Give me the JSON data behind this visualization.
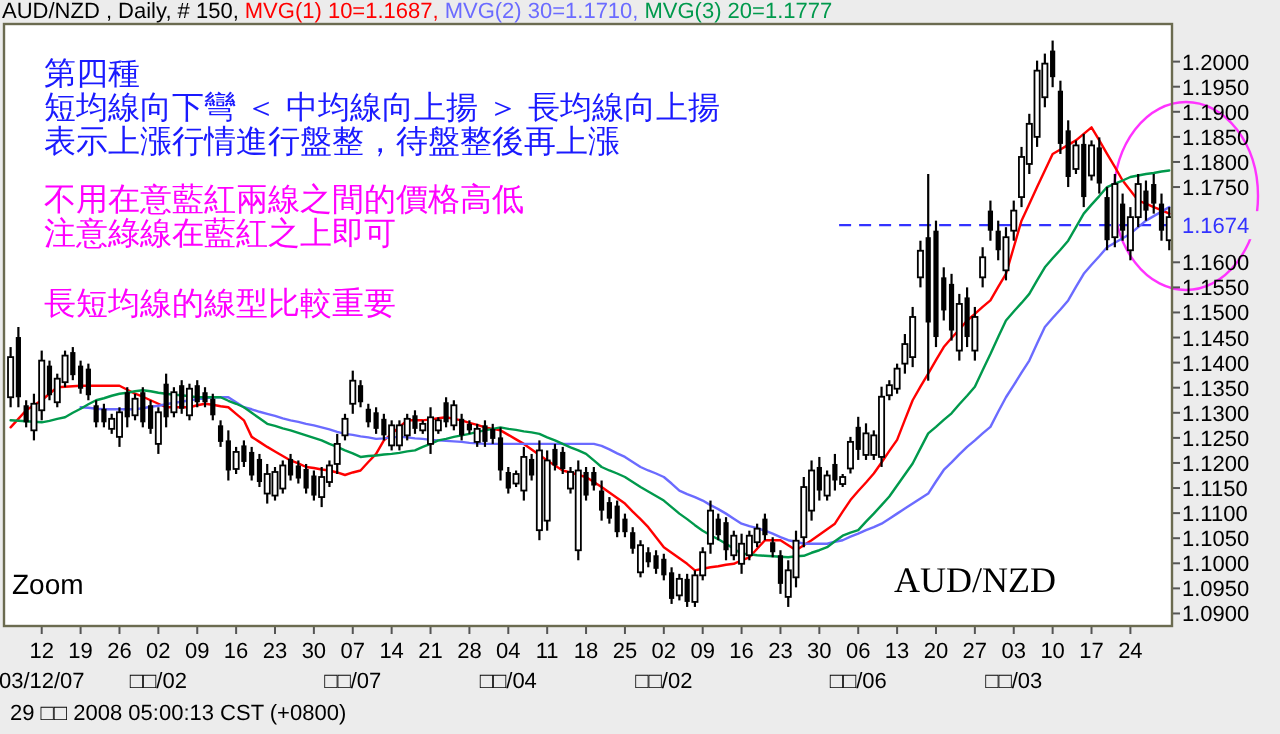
{
  "chart_data": {
    "type": "candlestick",
    "title": "AUD/NZD , Daily, # 150,",
    "categories": [
      null,
      null,
      null,
      null,
      "12\n03/12/07",
      null,
      null,
      null,
      null,
      "19",
      null,
      null,
      null,
      null,
      "26",
      null,
      null,
      null,
      null,
      "02\n□□/02",
      null,
      null,
      null,
      null,
      "09",
      null,
      null,
      null,
      null,
      "16",
      null,
      null,
      null,
      null,
      "23",
      null,
      null,
      null,
      null,
      "30",
      null,
      null,
      null,
      null,
      "07\n□□/07",
      null,
      null,
      null,
      null,
      "14",
      null,
      null,
      null,
      null,
      "21",
      null,
      null,
      null,
      null,
      "28",
      null,
      null,
      null,
      null,
      "04\n□□/04",
      null,
      null,
      null,
      null,
      "11",
      null,
      null,
      null,
      null,
      "18",
      null,
      null,
      null,
      null,
      "25",
      null,
      null,
      null,
      null,
      "02\n□□/02",
      null,
      null,
      null,
      null,
      "09",
      null,
      null,
      null,
      null,
      "16",
      null,
      null,
      null,
      null,
      "23",
      null,
      null,
      null,
      null,
      "30",
      null,
      null,
      null,
      null,
      "06\n□□/06",
      null,
      null,
      null,
      null,
      "13",
      null,
      null,
      null,
      null,
      "20",
      null,
      null,
      null,
      null,
      "27",
      null,
      null,
      null,
      null,
      "03\n□□/03",
      null,
      null,
      null,
      null,
      "10",
      null,
      null,
      null,
      null,
      "17",
      null,
      null,
      null,
      null,
      "24",
      null,
      null,
      null,
      null,
      null
    ],
    "ohlc": [
      [
        1.1331,
        1.1431,
        1.1311,
        1.1411
      ],
      [
        1.1451,
        1.1471,
        1.1311,
        1.1331
      ],
      [
        1.1315,
        1.1325,
        1.1271,
        1.1281
      ],
      [
        1.1265,
        1.1338,
        1.1245,
        1.1318
      ],
      [
        1.1305,
        1.1424,
        1.1285,
        1.1404
      ],
      [
        1.1394,
        1.1404,
        1.1325,
        1.1335
      ],
      [
        1.1321,
        1.1378,
        1.1311,
        1.1368
      ],
      [
        1.1361,
        1.1424,
        1.1351,
        1.1414
      ],
      [
        1.1421,
        1.1431,
        1.1365,
        1.1375
      ],
      [
        1.1394,
        1.1404,
        1.1338,
        1.1348
      ],
      [
        1.1388,
        1.1398,
        1.1325,
        1.1335
      ],
      [
        1.1315,
        1.1325,
        1.1271,
        1.1281
      ],
      [
        1.1308,
        1.1318,
        1.1271,
        1.1281
      ],
      [
        1.1268,
        1.1298,
        1.1258,
        1.1288
      ],
      [
        1.1252,
        1.1311,
        1.1232,
        1.1301
      ],
      [
        1.1341,
        1.1351,
        1.1271,
        1.1291
      ],
      [
        1.1295,
        1.1338,
        1.1285,
        1.1328
      ],
      [
        1.1341,
        1.1351,
        1.1271,
        1.1281
      ],
      [
        1.1315,
        1.1325,
        1.1258,
        1.1268
      ],
      [
        1.1238,
        1.1311,
        1.1218,
        1.1301
      ],
      [
        1.1358,
        1.1378,
        1.1271,
        1.1291
      ],
      [
        1.1301,
        1.1351,
        1.1291,
        1.1341
      ],
      [
        1.1355,
        1.1365,
        1.1298,
        1.1308
      ],
      [
        1.1295,
        1.1358,
        1.1285,
        1.1348
      ],
      [
        1.1355,
        1.1365,
        1.1311,
        1.1321
      ],
      [
        1.1341,
        1.1351,
        1.1311,
        1.1321
      ],
      [
        1.1328,
        1.1338,
        1.1285,
        1.1295
      ],
      [
        1.1275,
        1.1285,
        1.1232,
        1.1242
      ],
      [
        1.1245,
        1.1265,
        1.1165,
        1.1185
      ],
      [
        1.1188,
        1.1232,
        1.1178,
        1.1222
      ],
      [
        1.1235,
        1.1245,
        1.1192,
        1.1202
      ],
      [
        1.1222,
        1.1232,
        1.1165,
        1.1175
      ],
      [
        1.1208,
        1.1218,
        1.1152,
        1.1162
      ],
      [
        1.1139,
        1.1198,
        1.1119,
        1.1178
      ],
      [
        1.1135,
        1.1192,
        1.1125,
        1.1182
      ],
      [
        1.1149,
        1.1205,
        1.1139,
        1.1195
      ],
      [
        1.1208,
        1.1218,
        1.1165,
        1.1175
      ],
      [
        1.1195,
        1.1205,
        1.1159,
        1.1169
      ],
      [
        1.1188,
        1.1198,
        1.1139,
        1.1149
      ],
      [
        1.1175,
        1.1185,
        1.1125,
        1.1135
      ],
      [
        1.1132,
        1.1192,
        1.1112,
        1.1172
      ],
      [
        1.1162,
        1.1205,
        1.1152,
        1.1195
      ],
      [
        1.1198,
        1.1258,
        1.1178,
        1.1238
      ],
      [
        1.1255,
        1.1298,
        1.1245,
        1.1288
      ],
      [
        1.1318,
        1.1384,
        1.1298,
        1.1364
      ],
      [
        1.1355,
        1.1365,
        1.1311,
        1.1321
      ],
      [
        1.1308,
        1.1318,
        1.1271,
        1.1281
      ],
      [
        1.1301,
        1.1311,
        1.1258,
        1.1268
      ],
      [
        1.1288,
        1.1298,
        1.1245,
        1.1255
      ],
      [
        1.1235,
        1.1285,
        1.1225,
        1.1275
      ],
      [
        1.1235,
        1.1285,
        1.1225,
        1.1275
      ],
      [
        1.1255,
        1.1298,
        1.1245,
        1.1288
      ],
      [
        1.1295,
        1.1305,
        1.1258,
        1.1268
      ],
      [
        1.1265,
        1.1285,
        1.1258,
        1.1278
      ],
      [
        1.1238,
        1.1311,
        1.1218,
        1.1291
      ],
      [
        1.1265,
        1.1291,
        1.1258,
        1.1285
      ],
      [
        1.1321,
        1.1331,
        1.1271,
        1.1281
      ],
      [
        1.1275,
        1.1325,
        1.1265,
        1.1315
      ],
      [
        1.1288,
        1.1298,
        1.1245,
        1.1255
      ],
      [
        1.1278,
        1.1285,
        1.1258,
        1.1265
      ],
      [
        1.1242,
        1.1278,
        1.1232,
        1.1268
      ],
      [
        1.1275,
        1.1285,
        1.1232,
        1.1242
      ],
      [
        1.1268,
        1.1278,
        1.1238,
        1.1248
      ],
      [
        1.1251,
        1.1271,
        1.1165,
        1.1185
      ],
      [
        1.1182,
        1.1192,
        1.1139,
        1.1149
      ],
      [
        1.1159,
        1.1185,
        1.1152,
        1.1178
      ],
      [
        1.1145,
        1.1232,
        1.1125,
        1.1212
      ],
      [
        1.1208,
        1.1218,
        1.1165,
        1.1175
      ],
      [
        1.1066,
        1.1245,
        1.1046,
        1.1225
      ],
      [
        1.1085,
        1.1225,
        1.1065,
        1.1205
      ],
      [
        1.1228,
        1.1238,
        1.1185,
        1.1195
      ],
      [
        1.1222,
        1.1232,
        1.1178,
        1.1188
      ],
      [
        1.1149,
        1.1192,
        1.1139,
        1.1182
      ],
      [
        1.1026,
        1.1205,
        1.1006,
        1.1185
      ],
      [
        1.1182,
        1.1192,
        1.1125,
        1.1135
      ],
      [
        1.1182,
        1.1192,
        1.1145,
        1.1155
      ],
      [
        1.1145,
        1.1165,
        1.1085,
        1.1105
      ],
      [
        1.1122,
        1.1132,
        1.1079,
        1.1089
      ],
      [
        1.1115,
        1.1125,
        1.1052,
        1.1062
      ],
      [
        1.1089,
        1.1099,
        1.1052,
        1.1062
      ],
      [
        1.1062,
        1.1072,
        1.1019,
        1.1029
      ],
      [
        1.0982,
        1.1046,
        1.0972,
        1.1036
      ],
      [
        1.1022,
        1.1032,
        1.0992,
        1.1002
      ],
      [
        1.1016,
        1.1026,
        1.0979,
        1.0989
      ],
      [
        1.1009,
        1.1019,
        1.0966,
        1.0976
      ],
      [
        1.0982,
        1.0992,
        1.0919,
        1.0929
      ],
      [
        1.0936,
        1.0979,
        1.0926,
        1.0969
      ],
      [
        1.0969,
        1.0979,
        1.0913,
        1.0923
      ],
      [
        1.0923,
        1.0986,
        1.0913,
        1.0976
      ],
      [
        1.0976,
        1.1032,
        1.0966,
        1.1022
      ],
      [
        1.1039,
        1.1125,
        1.1019,
        1.1105
      ],
      [
        1.1089,
        1.1099,
        1.1046,
        1.1056
      ],
      [
        1.1082,
        1.1092,
        1.1006,
        1.1026
      ],
      [
        1.1016,
        1.1065,
        1.1006,
        1.1055
      ],
      [
        1.0999,
        1.1059,
        1.0979,
        1.1039
      ],
      [
        1.1016,
        1.1065,
        1.1006,
        1.1055
      ],
      [
        1.1042,
        1.1079,
        1.1032,
        1.1069
      ],
      [
        1.1089,
        1.1099,
        1.1046,
        1.1056
      ],
      [
        1.1042,
        1.1052,
        1.1012,
        1.1022
      ],
      [
        1.1016,
        1.1026,
        1.0939,
        1.0959
      ],
      [
        1.0933,
        1.1006,
        1.0913,
        1.0986
      ],
      [
        1.0972,
        1.1065,
        1.0952,
        1.1045
      ],
      [
        1.1052,
        1.1172,
        1.1032,
        1.1152
      ],
      [
        1.1105,
        1.1205,
        1.1085,
        1.1185
      ],
      [
        1.1192,
        1.1212,
        1.1125,
        1.1145
      ],
      [
        1.1135,
        1.1185,
        1.1125,
        1.1175
      ],
      [
        1.1198,
        1.1218,
        1.1145,
        1.1165
      ],
      [
        1.1158,
        1.1178,
        1.1152,
        1.1172
      ],
      [
        1.1189,
        1.1252,
        1.1179,
        1.1242
      ],
      [
        1.1272,
        1.1292,
        1.1206,
        1.1226
      ],
      [
        1.1216,
        1.1279,
        1.1206,
        1.1259
      ],
      [
        1.1216,
        1.1265,
        1.1206,
        1.1255
      ],
      [
        1.1212,
        1.1352,
        1.1192,
        1.1332
      ],
      [
        1.1335,
        1.1365,
        1.1325,
        1.1355
      ],
      [
        1.1348,
        1.1398,
        1.1338,
        1.1388
      ],
      [
        1.1398,
        1.1457,
        1.1378,
        1.1437
      ],
      [
        1.1411,
        1.1511,
        1.1391,
        1.1491
      ],
      [
        1.157,
        1.1643,
        1.155,
        1.1623
      ],
      [
        1.165,
        1.1776,
        1.1364,
        1.148
      ],
      [
        1.1663,
        1.1683,
        1.1431,
        1.1451
      ],
      [
        1.157,
        1.159,
        1.1484,
        1.1504
      ],
      [
        1.1557,
        1.1577,
        1.1444,
        1.1464
      ],
      [
        1.1424,
        1.1537,
        1.1404,
        1.1517
      ],
      [
        1.153,
        1.155,
        1.1431,
        1.1451
      ],
      [
        1.1424,
        1.1511,
        1.1404,
        1.1491
      ],
      [
        1.157,
        1.163,
        1.155,
        1.161
      ],
      [
        1.1703,
        1.1723,
        1.1643,
        1.1663
      ],
      [
        1.1663,
        1.1683,
        1.1604,
        1.1624
      ],
      [
        1.1584,
        1.167,
        1.1564,
        1.165
      ],
      [
        1.1663,
        1.1723,
        1.1643,
        1.1703
      ],
      [
        1.173,
        1.183,
        1.171,
        1.181
      ],
      [
        1.1796,
        1.1896,
        1.1776,
        1.1876
      ],
      [
        1.185,
        1.2002,
        1.183,
        1.1982
      ],
      [
        1.1929,
        1.2016,
        1.1909,
        1.1996
      ],
      [
        1.2022,
        1.2042,
        1.1949,
        1.1969
      ],
      [
        1.1942,
        1.1962,
        1.1816,
        1.1836
      ],
      [
        1.1863,
        1.1883,
        1.175,
        1.177
      ],
      [
        1.1786,
        1.1843,
        1.1776,
        1.1833
      ],
      [
        1.1836,
        1.1856,
        1.171,
        1.173
      ],
      [
        1.1773,
        1.1843,
        1.1763,
        1.1833
      ],
      [
        1.1829,
        1.1849,
        1.1737,
        1.1757
      ],
      [
        1.173,
        1.175,
        1.1624,
        1.1644
      ],
      [
        1.165,
        1.1776,
        1.163,
        1.1756
      ],
      [
        1.1717,
        1.1737,
        1.1643,
        1.1663
      ],
      [
        1.1624,
        1.171,
        1.1604,
        1.169
      ],
      [
        1.169,
        1.1776,
        1.167,
        1.1756
      ],
      [
        1.1743,
        1.1763,
        1.1683,
        1.1703
      ],
      [
        1.1756,
        1.1776,
        1.1697,
        1.1717
      ],
      [
        1.1717,
        1.1737,
        1.1643,
        1.1663
      ],
      [
        1.1644,
        1.171,
        1.1624,
        1.169
      ]
    ],
    "series": [
      {
        "type": "line",
        "name": "MVG(1) 10=1.1687,",
        "color": "#ff0000",
        "values": [
          1.1271,
          1.1288,
          1.1305,
          1.1315,
          1.1325,
          1.1338,
          1.1351,
          1.1352,
          1.1353,
          1.1354,
          1.1354,
          1.1354,
          1.1354,
          1.1354,
          1.1354,
          1.1346,
          1.1338,
          1.1332,
          1.1325,
          1.1318,
          1.1311,
          1.1311,
          1.1311,
          1.1311,
          1.1315,
          1.1318,
          1.1316,
          1.1313,
          1.1311,
          1.1298,
          1.1285,
          1.1252,
          1.1242,
          1.1232,
          1.1223,
          1.1214,
          1.1205,
          1.1199,
          1.1192,
          1.119,
          1.1187,
          1.1185,
          1.1181,
          1.1176,
          1.1181,
          1.1185,
          1.1202,
          1.1218,
          1.1245,
          1.1258,
          1.1272,
          1.1285,
          1.1285,
          1.1285,
          1.1287,
          1.1289,
          1.1291,
          1.1288,
          1.1285,
          1.128,
          1.1276,
          1.1271,
          1.1268,
          1.1265,
          1.1256,
          1.1247,
          1.1238,
          1.1227,
          1.1216,
          1.1205,
          1.1195,
          1.1185,
          1.1181,
          1.1176,
          1.1172,
          1.1162,
          1.1152,
          1.1141,
          1.113,
          1.1119,
          1.1103,
          1.1088,
          1.1072,
          1.1052,
          1.1032,
          1.1021,
          1.101,
          1.0999,
          1.0986,
          1.0989,
          1.0992,
          1.0994,
          1.0997,
          1.0999,
          1.1006,
          1.1012,
          1.1029,
          1.1046,
          1.1046,
          1.1046,
          1.1036,
          1.1026,
          1.1036,
          1.1046,
          1.1057,
          1.1068,
          1.1079,
          1.1103,
          1.1126,
          1.1144,
          1.1161,
          1.1179,
          1.1201,
          1.1224,
          1.1246,
          1.1286,
          1.1325,
          1.1352,
          1.1378,
          1.1405,
          1.1431,
          1.1449,
          1.1466,
          1.1484,
          1.1497,
          1.1511,
          1.1524,
          1.1551,
          1.1577,
          1.163,
          1.1683,
          1.1716,
          1.175,
          1.1783,
          1.1816,
          1.1825,
          1.1834,
          1.1843,
          1.1856,
          1.1869,
          1.1843,
          1.1816,
          1.179,
          1.1763,
          1.1743,
          1.1723,
          1.1717,
          1.171,
          1.1704,
          1.1697
        ]
      },
      {
        "type": "line",
        "name": "MVG(2) 30=1.1710,",
        "color": "#6b6bff",
        "values": [
          null,
          null,
          null,
          null,
          null,
          null,
          null,
          null,
          null,
          1.1311,
          1.131,
          1.1308,
          1.1307,
          1.1307,
          1.1307,
          1.1307,
          1.1307,
          1.1309,
          1.1312,
          1.1314,
          1.1317,
          1.132,
          1.1322,
          1.1325,
          1.1327,
          1.1329,
          1.1331,
          1.1331,
          1.1331,
          1.1321,
          1.1311,
          1.1307,
          1.1302,
          1.1298,
          1.1294,
          1.1289,
          1.1285,
          1.1282,
          1.1278,
          1.1275,
          1.1271,
          1.1267,
          1.1262,
          1.1258,
          1.1256,
          1.1253,
          1.1251,
          1.1248,
          1.1249,
          1.1251,
          1.1252,
          1.1251,
          1.1249,
          1.1248,
          1.1246,
          1.1245,
          1.1244,
          1.1243,
          1.1242,
          1.124,
          1.1239,
          1.1238,
          1.1238,
          1.1238,
          1.1238,
          1.1238,
          1.1238,
          1.1238,
          1.1238,
          1.1238,
          1.1238,
          1.1238,
          1.1238,
          1.1238,
          1.1238,
          1.1238,
          1.1234,
          1.1227,
          1.1219,
          1.1212,
          1.1202,
          1.1192,
          1.1185,
          1.1179,
          1.1172,
          1.1159,
          1.1145,
          1.1138,
          1.1132,
          1.1125,
          1.1116,
          1.1108,
          1.1099,
          1.1089,
          1.1079,
          1.1074,
          1.107,
          1.1065,
          1.1059,
          1.1052,
          1.1046,
          1.1043,
          1.1039,
          1.1039,
          1.1039,
          1.1039,
          1.1043,
          1.1046,
          1.1053,
          1.1059,
          1.1066,
          1.1072,
          1.1079,
          1.1089,
          1.1099,
          1.1109,
          1.1119,
          1.1129,
          1.1139,
          1.1163,
          1.1186,
          1.1201,
          1.1217,
          1.1232,
          1.1245,
          1.1259,
          1.1272,
          1.1302,
          1.1331,
          1.1355,
          1.138,
          1.1404,
          1.1438,
          1.1471,
          1.1489,
          1.1506,
          1.1524,
          1.1551,
          1.1577,
          1.1595,
          1.1612,
          1.163,
          1.1639,
          1.1648,
          1.1657,
          1.167,
          1.1683,
          1.1692,
          1.1701,
          1.171
        ]
      },
      {
        "type": "line",
        "name": "MVG(3) 20=1.1777",
        "color": "#00994c",
        "values": [
          1.1285,
          1.1284,
          1.1283,
          1.1282,
          1.1281,
          1.1284,
          1.1288,
          1.1291,
          1.13,
          1.1308,
          1.1317,
          1.1325,
          1.1329,
          1.1334,
          1.1338,
          1.134,
          1.1343,
          1.1345,
          1.1343,
          1.134,
          1.1338,
          1.1336,
          1.1335,
          1.1333,
          1.1331,
          1.1331,
          1.1331,
          1.1331,
          1.1324,
          1.1318,
          1.1311,
          1.13,
          1.1289,
          1.1278,
          1.1274,
          1.1269,
          1.1265,
          1.126,
          1.1255,
          1.125,
          1.1245,
          1.1238,
          1.1232,
          1.1225,
          1.1219,
          1.1212,
          1.1214,
          1.1215,
          1.1217,
          1.1218,
          1.122,
          1.1223,
          1.1225,
          1.1232,
          1.1238,
          1.1245,
          1.1248,
          1.1252,
          1.1255,
          1.1258,
          1.1262,
          1.1265,
          1.1268,
          1.1271,
          1.1268,
          1.1266,
          1.1263,
          1.1261,
          1.1258,
          1.1251,
          1.1245,
          1.1238,
          1.1231,
          1.1225,
          1.1218,
          1.1205,
          1.1192,
          1.1185,
          1.1179,
          1.1172,
          1.1162,
          1.1152,
          1.1143,
          1.1134,
          1.1125,
          1.1112,
          1.1099,
          1.1088,
          1.1076,
          1.1065,
          1.1056,
          1.1048,
          1.1039,
          1.1029,
          1.1019,
          1.1018,
          1.1016,
          1.1015,
          1.1014,
          1.1013,
          1.1012,
          1.1014,
          1.1015,
          1.1021,
          1.1026,
          1.1032,
          1.1044,
          1.1055,
          1.1061,
          1.1066,
          1.1083,
          1.1099,
          1.1116,
          1.1133,
          1.1155,
          1.1177,
          1.1199,
          1.1229,
          1.1259,
          1.1272,
          1.1286,
          1.1299,
          1.1317,
          1.1334,
          1.1352,
          1.1385,
          1.1417,
          1.1451,
          1.1484,
          1.1502,
          1.1519,
          1.1537,
          1.1564,
          1.159,
          1.1608,
          1.1625,
          1.1643,
          1.167,
          1.1697,
          1.1715,
          1.1732,
          1.175,
          1.1757,
          1.1763,
          1.177,
          1.1773,
          1.1776,
          1.1778,
          1.1781,
          1.1783
        ]
      }
    ],
    "ylim": [
      1.0875,
      1.2075
    ],
    "yticks": [
      {
        "value": 1.09,
        "label": "1.0900"
      },
      {
        "value": 1.095,
        "label": "1.0950"
      },
      {
        "value": 1.1,
        "label": "1.1000"
      },
      {
        "value": 1.105,
        "label": "1.1050"
      },
      {
        "value": 1.11,
        "label": "1.1100"
      },
      {
        "value": 1.115,
        "label": "1.1150"
      },
      {
        "value": 1.12,
        "label": "1.1200"
      },
      {
        "value": 1.125,
        "label": "1.1250"
      },
      {
        "value": 1.13,
        "label": "1.1300"
      },
      {
        "value": 1.135,
        "label": "1.1350"
      },
      {
        "value": 1.14,
        "label": "1.1400"
      },
      {
        "value": 1.145,
        "label": "1.1450"
      },
      {
        "value": 1.15,
        "label": "1.1500"
      },
      {
        "value": 1.155,
        "label": "1.1550"
      },
      {
        "value": 1.16,
        "label": "1.1600"
      },
      {
        "value": 1.175,
        "label": "1.1750"
      },
      {
        "value": 1.18,
        "label": "1.1800"
      },
      {
        "value": 1.185,
        "label": "1.1850"
      },
      {
        "value": 1.19,
        "label": "1.1900"
      },
      {
        "value": 1.195,
        "label": "1.1950"
      },
      {
        "value": 1.2,
        "label": "1.2000"
      }
    ],
    "ref_lines": [
      {
        "axis": "y",
        "value": 1.1674,
        "label": "1.1674",
        "color": "#3333ff",
        "line_style": "dashed"
      }
    ],
    "legend": "top",
    "annotations": [
      "第四種",
      "短均線向下彎 ＜ 中均線向上揚 ＞ 長均線向上揚",
      "表示上漲行情進行盤整，待盤整後再上漲",
      "不用在意藍紅兩線之間的價格高低",
      "注意綠線在藍紅之上即可",
      "長短均線的線型比較重要",
      "Zoom",
      "AUD/NZD",
      "29 □□ 2008 05:00:13 CST (+0800)"
    ]
  }
}
